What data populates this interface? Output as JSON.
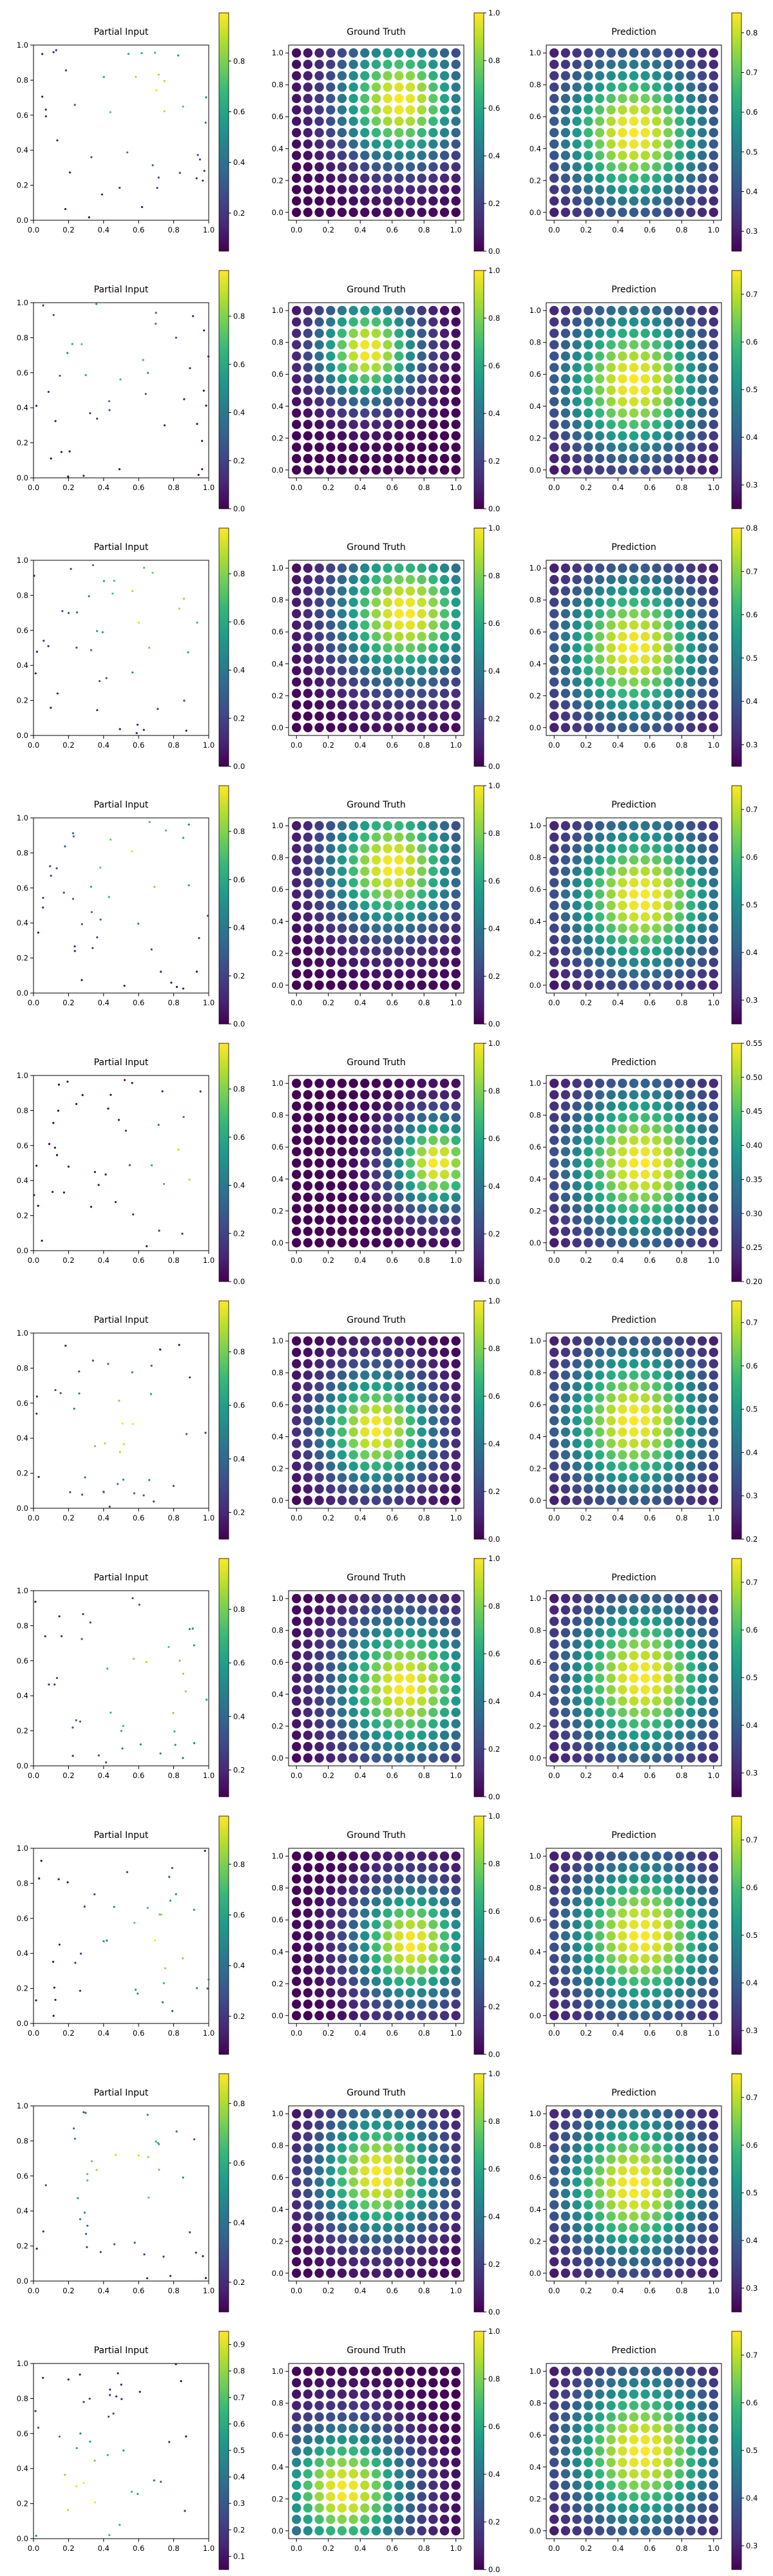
{
  "figure": {
    "panel_titles": [
      "Partial Input",
      "Ground Truth",
      "Prediction"
    ],
    "colormap": "viridis",
    "viridis_stops": [
      "#440154",
      "#482878",
      "#3e4989",
      "#31688e",
      "#26828e",
      "#1f9e89",
      "#35b779",
      "#6ece58",
      "#b5de2b",
      "#fde725"
    ]
  },
  "chart_data": [
    {
      "row": 1,
      "partial": {
        "type": "scatter",
        "title": "Partial Input",
        "xlim": [
          0,
          1
        ],
        "ylim": [
          0,
          1
        ],
        "xticks": [
          "0.0",
          "0.2",
          "0.4",
          "0.6",
          "0.8",
          "1.0"
        ],
        "yticks": [
          "0.0",
          "0.2",
          "0.4",
          "0.6",
          "0.8",
          "1.0"
        ],
        "colorbar": {
          "min": 0.05,
          "max": 0.99,
          "ticks": [
            "0.2",
            "0.4",
            "0.6",
            "0.8"
          ]
        }
      },
      "truth": {
        "type": "scatter",
        "title": "Ground Truth",
        "grid_n": 15,
        "center": [
          0.65,
          0.7
        ],
        "sigma": 0.27,
        "colorbar": {
          "min": 0,
          "max": 1,
          "ticks": [
            "0.0",
            "0.2",
            "0.4",
            "0.6",
            "0.8",
            "1.0"
          ]
        }
      },
      "pred": {
        "type": "scatter",
        "title": "Prediction",
        "grid_n": 15,
        "center": [
          0.5,
          0.5
        ],
        "sigma": 0.32,
        "colorbar": {
          "min": 0.25,
          "max": 0.85,
          "ticks": [
            "0.3",
            "0.4",
            "0.5",
            "0.6",
            "0.7",
            "0.8"
          ]
        }
      }
    },
    {
      "row": 2,
      "partial": {
        "type": "scatter",
        "title": "Partial Input",
        "xlim": [
          0,
          1
        ],
        "ylim": [
          0,
          1
        ],
        "xticks": [
          "0.0",
          "0.2",
          "0.4",
          "0.6",
          "0.8",
          "1.0"
        ],
        "yticks": [
          "0.0",
          "0.2",
          "0.4",
          "0.6",
          "0.8",
          "1.0"
        ],
        "colorbar": {
          "min": 0.0,
          "max": 0.99,
          "ticks": [
            "0.0",
            "0.2",
            "0.4",
            "0.6",
            "0.8"
          ]
        }
      },
      "truth": {
        "type": "scatter",
        "title": "Ground Truth",
        "grid_n": 15,
        "center": [
          0.45,
          0.75
        ],
        "sigma": 0.22,
        "colorbar": {
          "min": 0,
          "max": 1,
          "ticks": [
            "0.0",
            "0.2",
            "0.4",
            "0.6",
            "0.8",
            "1.0"
          ]
        }
      },
      "pred": {
        "type": "scatter",
        "title": "Prediction",
        "grid_n": 15,
        "center": [
          0.5,
          0.55
        ],
        "sigma": 0.32,
        "colorbar": {
          "min": 0.25,
          "max": 0.75,
          "ticks": [
            "0.3",
            "0.4",
            "0.5",
            "0.6",
            "0.7"
          ]
        }
      }
    },
    {
      "row": 3,
      "partial": {
        "type": "scatter",
        "title": "Partial Input",
        "xlim": [
          0,
          1
        ],
        "ylim": [
          0,
          1
        ],
        "xticks": [
          "0.0",
          "0.2",
          "0.4",
          "0.6",
          "0.8",
          "1.0"
        ],
        "yticks": [
          "0.0",
          "0.2",
          "0.4",
          "0.6",
          "0.8",
          "1.0"
        ],
        "colorbar": {
          "min": 0.0,
          "max": 0.99,
          "ticks": [
            "0.0",
            "0.2",
            "0.4",
            "0.6",
            "0.8"
          ]
        }
      },
      "truth": {
        "type": "scatter",
        "title": "Ground Truth",
        "grid_n": 15,
        "center": [
          0.68,
          0.72
        ],
        "sigma": 0.3,
        "colorbar": {
          "min": 0,
          "max": 1,
          "ticks": [
            "0.0",
            "0.2",
            "0.4",
            "0.6",
            "0.8",
            "1.0"
          ]
        }
      },
      "pred": {
        "type": "scatter",
        "title": "Prediction",
        "grid_n": 15,
        "center": [
          0.5,
          0.5
        ],
        "sigma": 0.32,
        "colorbar": {
          "min": 0.25,
          "max": 0.8,
          "ticks": [
            "0.3",
            "0.4",
            "0.5",
            "0.6",
            "0.7",
            "0.8"
          ]
        }
      }
    },
    {
      "row": 4,
      "partial": {
        "type": "scatter",
        "title": "Partial Input",
        "xlim": [
          0,
          1
        ],
        "ylim": [
          0,
          1
        ],
        "xticks": [
          "0.0",
          "0.2",
          "0.4",
          "0.6",
          "0.8",
          "1.0"
        ],
        "yticks": [
          "0.0",
          "0.2",
          "0.4",
          "0.6",
          "0.8",
          "1.0"
        ],
        "colorbar": {
          "min": 0.0,
          "max": 0.99,
          "ticks": [
            "0.0",
            "0.2",
            "0.4",
            "0.6",
            "0.8"
          ]
        }
      },
      "truth": {
        "type": "scatter",
        "title": "Ground Truth",
        "grid_n": 15,
        "center": [
          0.6,
          0.75
        ],
        "sigma": 0.28,
        "colorbar": {
          "min": 0,
          "max": 1,
          "ticks": [
            "0.0",
            "0.2",
            "0.4",
            "0.6",
            "0.8",
            "1.0"
          ]
        }
      },
      "pred": {
        "type": "scatter",
        "title": "Prediction",
        "grid_n": 15,
        "center": [
          0.55,
          0.55
        ],
        "sigma": 0.33,
        "colorbar": {
          "min": 0.25,
          "max": 0.75,
          "ticks": [
            "0.3",
            "0.4",
            "0.5",
            "0.6",
            "0.7"
          ]
        }
      }
    },
    {
      "row": 5,
      "partial": {
        "type": "scatter",
        "title": "Partial Input",
        "xlim": [
          0,
          1
        ],
        "ylim": [
          0,
          1
        ],
        "xticks": [
          "0.0",
          "0.2",
          "0.4",
          "0.6",
          "0.8",
          "1.0"
        ],
        "yticks": [
          "0.0",
          "0.2",
          "0.4",
          "0.6",
          "0.8",
          "1.0"
        ],
        "colorbar": {
          "min": 0.0,
          "max": 0.99,
          "ticks": [
            "0.0",
            "0.2",
            "0.4",
            "0.6",
            "0.8"
          ]
        }
      },
      "truth": {
        "type": "scatter",
        "title": "Ground Truth",
        "grid_n": 15,
        "center": [
          0.88,
          0.5
        ],
        "sigma": 0.2,
        "colorbar": {
          "min": 0,
          "max": 1,
          "ticks": [
            "0.0",
            "0.2",
            "0.4",
            "0.6",
            "0.8",
            "1.0"
          ]
        }
      },
      "pred": {
        "type": "scatter",
        "title": "Prediction",
        "grid_n": 15,
        "center": [
          0.55,
          0.5
        ],
        "sigma": 0.33,
        "colorbar": {
          "min": 0.2,
          "max": 0.55,
          "ticks": [
            "0.20",
            "0.25",
            "0.30",
            "0.35",
            "0.40",
            "0.45",
            "0.50",
            "0.55"
          ]
        }
      }
    },
    {
      "row": 6,
      "partial": {
        "type": "scatter",
        "title": "Partial Input",
        "xlim": [
          0,
          1
        ],
        "ylim": [
          0,
          1
        ],
        "xticks": [
          "0.0",
          "0.2",
          "0.4",
          "0.6",
          "0.8",
          "1.0"
        ],
        "yticks": [
          "0.0",
          "0.2",
          "0.4",
          "0.6",
          "0.8",
          "1.0"
        ],
        "colorbar": {
          "min": 0.1,
          "max": 0.99,
          "ticks": [
            "0.2",
            "0.4",
            "0.6",
            "0.8"
          ]
        }
      },
      "truth": {
        "type": "scatter",
        "title": "Ground Truth",
        "grid_n": 15,
        "center": [
          0.5,
          0.45
        ],
        "sigma": 0.25,
        "colorbar": {
          "min": 0,
          "max": 1,
          "ticks": [
            "0.0",
            "0.2",
            "0.4",
            "0.6",
            "0.8",
            "1.0"
          ]
        }
      },
      "pred": {
        "type": "scatter",
        "title": "Prediction",
        "grid_n": 15,
        "center": [
          0.5,
          0.5
        ],
        "sigma": 0.32,
        "colorbar": {
          "min": 0.2,
          "max": 0.75,
          "ticks": [
            "0.2",
            "0.3",
            "0.4",
            "0.5",
            "0.6",
            "0.7"
          ]
        }
      }
    },
    {
      "row": 7,
      "partial": {
        "type": "scatter",
        "title": "Partial Input",
        "xlim": [
          0,
          1
        ],
        "ylim": [
          0,
          1
        ],
        "xticks": [
          "0.0",
          "0.2",
          "0.4",
          "0.6",
          "0.8",
          "1.0"
        ],
        "yticks": [
          "0.0",
          "0.2",
          "0.4",
          "0.6",
          "0.8",
          "1.0"
        ],
        "colorbar": {
          "min": 0.1,
          "max": 0.99,
          "ticks": [
            "0.2",
            "0.4",
            "0.6",
            "0.8"
          ]
        }
      },
      "truth": {
        "type": "scatter",
        "title": "Ground Truth",
        "grid_n": 15,
        "center": [
          0.68,
          0.45
        ],
        "sigma": 0.3,
        "colorbar": {
          "min": 0,
          "max": 1,
          "ticks": [
            "0.0",
            "0.2",
            "0.4",
            "0.6",
            "0.8",
            "1.0"
          ]
        }
      },
      "pred": {
        "type": "scatter",
        "title": "Prediction",
        "grid_n": 15,
        "center": [
          0.55,
          0.5
        ],
        "sigma": 0.33,
        "colorbar": {
          "min": 0.25,
          "max": 0.75,
          "ticks": [
            "0.3",
            "0.4",
            "0.5",
            "0.6",
            "0.7"
          ]
        }
      }
    },
    {
      "row": 8,
      "partial": {
        "type": "scatter",
        "title": "Partial Input",
        "xlim": [
          0,
          1
        ],
        "ylim": [
          0,
          1
        ],
        "xticks": [
          "0.0",
          "0.2",
          "0.4",
          "0.6",
          "0.8",
          "1.0"
        ],
        "yticks": [
          "0.0",
          "0.2",
          "0.4",
          "0.6",
          "0.8",
          "1.0"
        ],
        "colorbar": {
          "min": 0.05,
          "max": 0.99,
          "ticks": [
            "0.2",
            "0.4",
            "0.6",
            "0.8"
          ]
        }
      },
      "truth": {
        "type": "scatter",
        "title": "Ground Truth",
        "grid_n": 15,
        "center": [
          0.72,
          0.45
        ],
        "sigma": 0.25,
        "colorbar": {
          "min": 0,
          "max": 1,
          "ticks": [
            "0.0",
            "0.2",
            "0.4",
            "0.6",
            "0.8",
            "1.0"
          ]
        }
      },
      "pred": {
        "type": "scatter",
        "title": "Prediction",
        "grid_n": 15,
        "center": [
          0.55,
          0.5
        ],
        "sigma": 0.33,
        "colorbar": {
          "min": 0.25,
          "max": 0.75,
          "ticks": [
            "0.3",
            "0.4",
            "0.5",
            "0.6",
            "0.7"
          ]
        }
      }
    },
    {
      "row": 9,
      "partial": {
        "type": "scatter",
        "title": "Partial Input",
        "xlim": [
          0,
          1
        ],
        "ylim": [
          0,
          1
        ],
        "xticks": [
          "0.0",
          "0.2",
          "0.4",
          "0.6",
          "0.8",
          "1.0"
        ],
        "yticks": [
          "0.0",
          "0.2",
          "0.4",
          "0.6",
          "0.8",
          "1.0"
        ],
        "colorbar": {
          "min": 0.1,
          "max": 0.9,
          "ticks": [
            "0.2",
            "0.4",
            "0.6",
            "0.8"
          ]
        }
      },
      "truth": {
        "type": "scatter",
        "title": "Ground Truth",
        "grid_n": 15,
        "center": [
          0.52,
          0.62
        ],
        "sigma": 0.27,
        "colorbar": {
          "min": 0,
          "max": 1,
          "ticks": [
            "0.0",
            "0.2",
            "0.4",
            "0.6",
            "0.8",
            "1.0"
          ]
        }
      },
      "pred": {
        "type": "scatter",
        "title": "Prediction",
        "grid_n": 15,
        "center": [
          0.5,
          0.55
        ],
        "sigma": 0.32,
        "colorbar": {
          "min": 0.25,
          "max": 0.75,
          "ticks": [
            "0.3",
            "0.4",
            "0.5",
            "0.6",
            "0.7"
          ]
        }
      }
    },
    {
      "row": 10,
      "partial": {
        "type": "scatter",
        "title": "Partial Input",
        "xlim": [
          0,
          1
        ],
        "ylim": [
          0,
          1
        ],
        "xticks": [
          "0.0",
          "0.2",
          "0.4",
          "0.6",
          "0.8",
          "1.0"
        ],
        "yticks": [
          "0.0",
          "0.2",
          "0.4",
          "0.6",
          "0.8",
          "1.0"
        ],
        "colorbar": {
          "min": 0.05,
          "max": 0.95,
          "ticks": [
            "0.1",
            "0.2",
            "0.3",
            "0.4",
            "0.5",
            "0.6",
            "0.7",
            "0.8",
            "0.9"
          ]
        }
      },
      "truth": {
        "type": "scatter",
        "title": "Ground Truth",
        "grid_n": 15,
        "center": [
          0.3,
          0.25
        ],
        "sigma": 0.28,
        "colorbar": {
          "min": 0,
          "max": 1,
          "ticks": [
            "0.0",
            "0.2",
            "0.4",
            "0.6",
            "0.8",
            "1.0"
          ]
        }
      },
      "pred": {
        "type": "scatter",
        "title": "Prediction",
        "grid_n": 15,
        "center": [
          0.55,
          0.5
        ],
        "sigma": 0.33,
        "colorbar": {
          "min": 0.25,
          "max": 0.75,
          "ticks": [
            "0.3",
            "0.4",
            "0.5",
            "0.6",
            "0.7"
          ]
        }
      }
    }
  ]
}
